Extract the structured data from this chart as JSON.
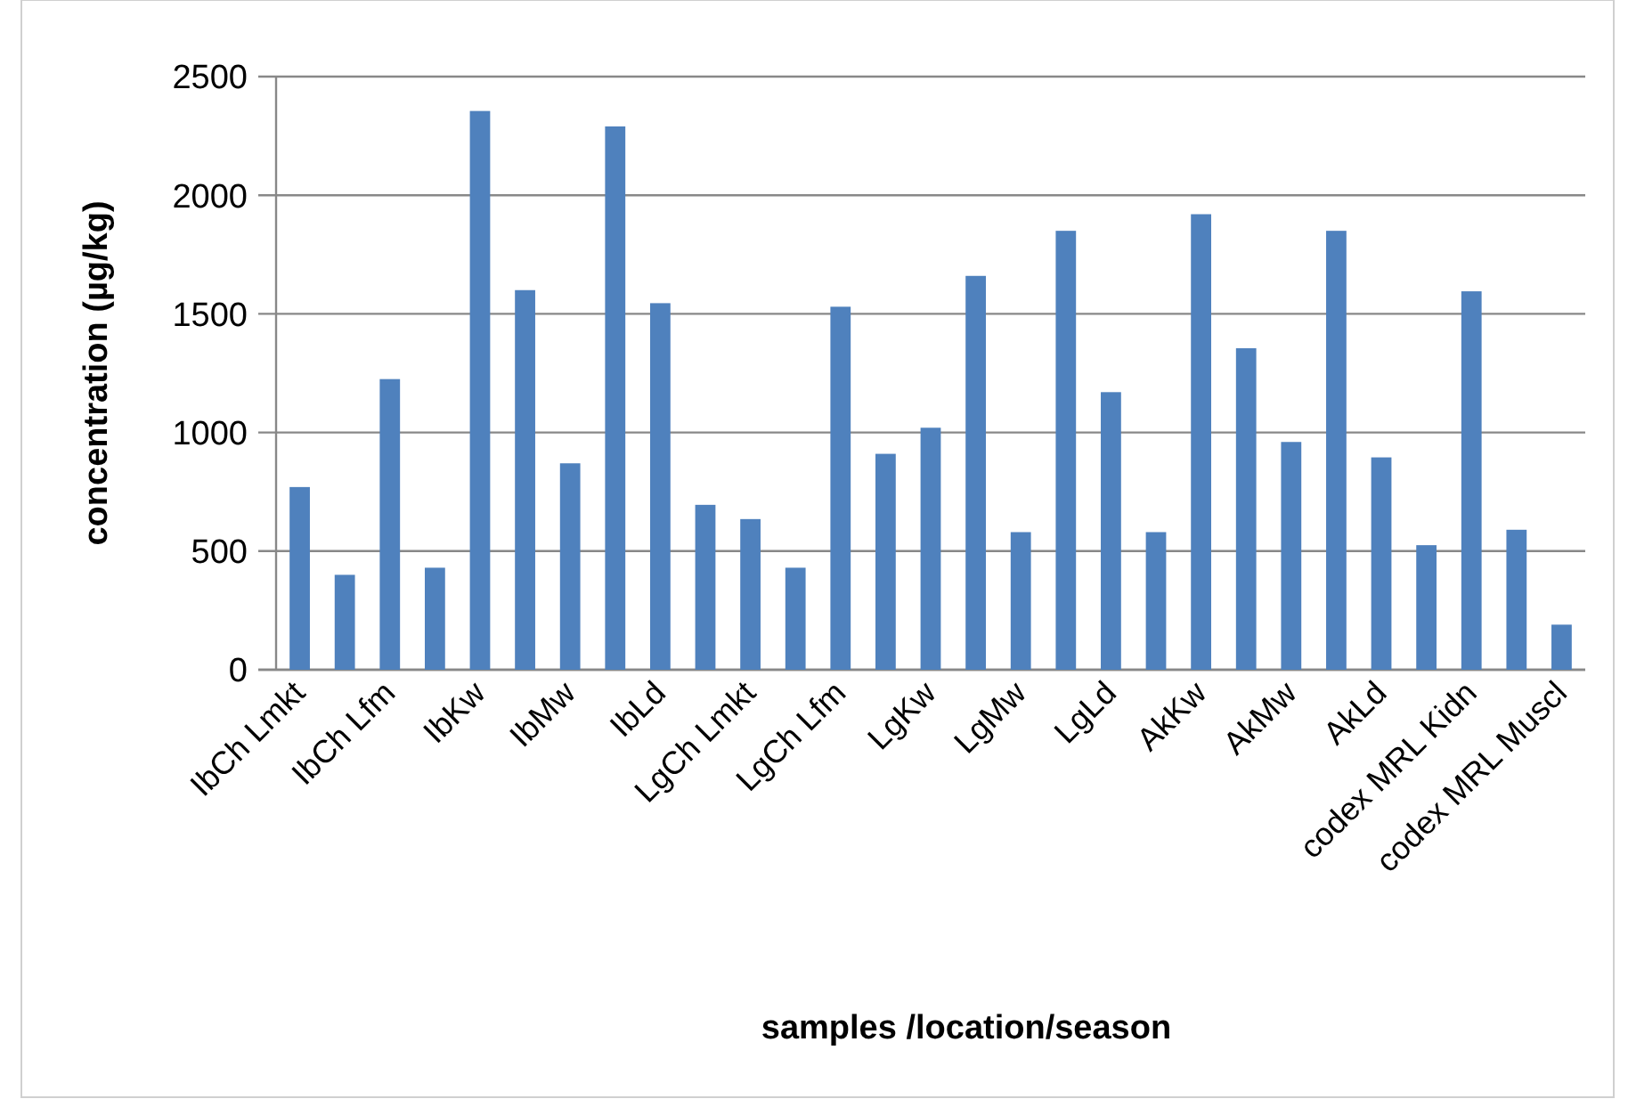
{
  "chart_data": {
    "type": "bar",
    "xlabel": "samples /location/season",
    "ylabel": "concentration (µg/kg)",
    "categories": [
      "IbCh Lmkt",
      null,
      "IbCh Lfm",
      null,
      "IbKw",
      null,
      "IbMw",
      null,
      "IbLd",
      null,
      "LgCh Lmkt",
      null,
      "LgCh Lfm",
      null,
      "LgKw",
      null,
      "LgMw",
      null,
      "LgLd",
      null,
      "AkKw",
      null,
      "AkMw",
      null,
      "AkLd",
      null,
      "codex MRL Kidn",
      null,
      "codex MRL Muscl"
    ],
    "values": [
      770,
      400,
      1225,
      430,
      2355,
      1600,
      870,
      2290,
      1545,
      695,
      635,
      430,
      1530,
      910,
      1020,
      1660,
      580,
      1850,
      1170,
      580,
      1920,
      1355,
      960,
      1850,
      895,
      525,
      1595,
      590,
      190
    ],
    "color": "#4f81bd",
    "ylim": [
      0,
      2500
    ],
    "yticks": [
      0,
      500,
      1000,
      1500,
      2000,
      2500
    ],
    "grid": "y"
  }
}
